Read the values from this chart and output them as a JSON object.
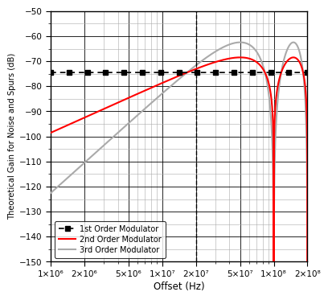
{
  "xlabel": "Offset (Hz)",
  "ylabel": "Theoretical Gain for Noise and Spurs (dB)",
  "xlim_log": [
    1000000.0,
    200000000.0
  ],
  "ylim": [
    -150,
    -50
  ],
  "yticks": [
    -150,
    -140,
    -130,
    -120,
    -110,
    -100,
    -90,
    -80,
    -70,
    -60,
    -50
  ],
  "xticks": [
    1000000.0,
    2000000.0,
    5000000.0,
    10000000.0,
    20000000.0,
    50000000.0,
    100000000.0,
    200000000.0
  ],
  "xtick_labels": [
    "1×10⁶",
    "2×10⁶",
    "5×10⁶",
    "1×10⁷",
    "2×10⁷",
    "5×10⁷",
    "1×10⁸",
    "2×10⁸"
  ],
  "fPD": 100000000.0,
  "dashed_line_x": 20000000.0,
  "G1_flat": -74.5,
  "line1_color": "#000000",
  "line2_color": "#ff0000",
  "line3_color": "#aaaaaa",
  "legend_labels": [
    "1st Order Modulator",
    "2nd Order Modulator",
    "3rd Order Modulator"
  ],
  "background_color": "#ffffff",
  "major_grid_color": "#000000",
  "minor_grid_color": "#aaaaaa",
  "major_grid_lw": 0.6,
  "minor_grid_lw": 0.4,
  "marker_count": 15,
  "marker_size": 4,
  "line_lw": 1.5
}
